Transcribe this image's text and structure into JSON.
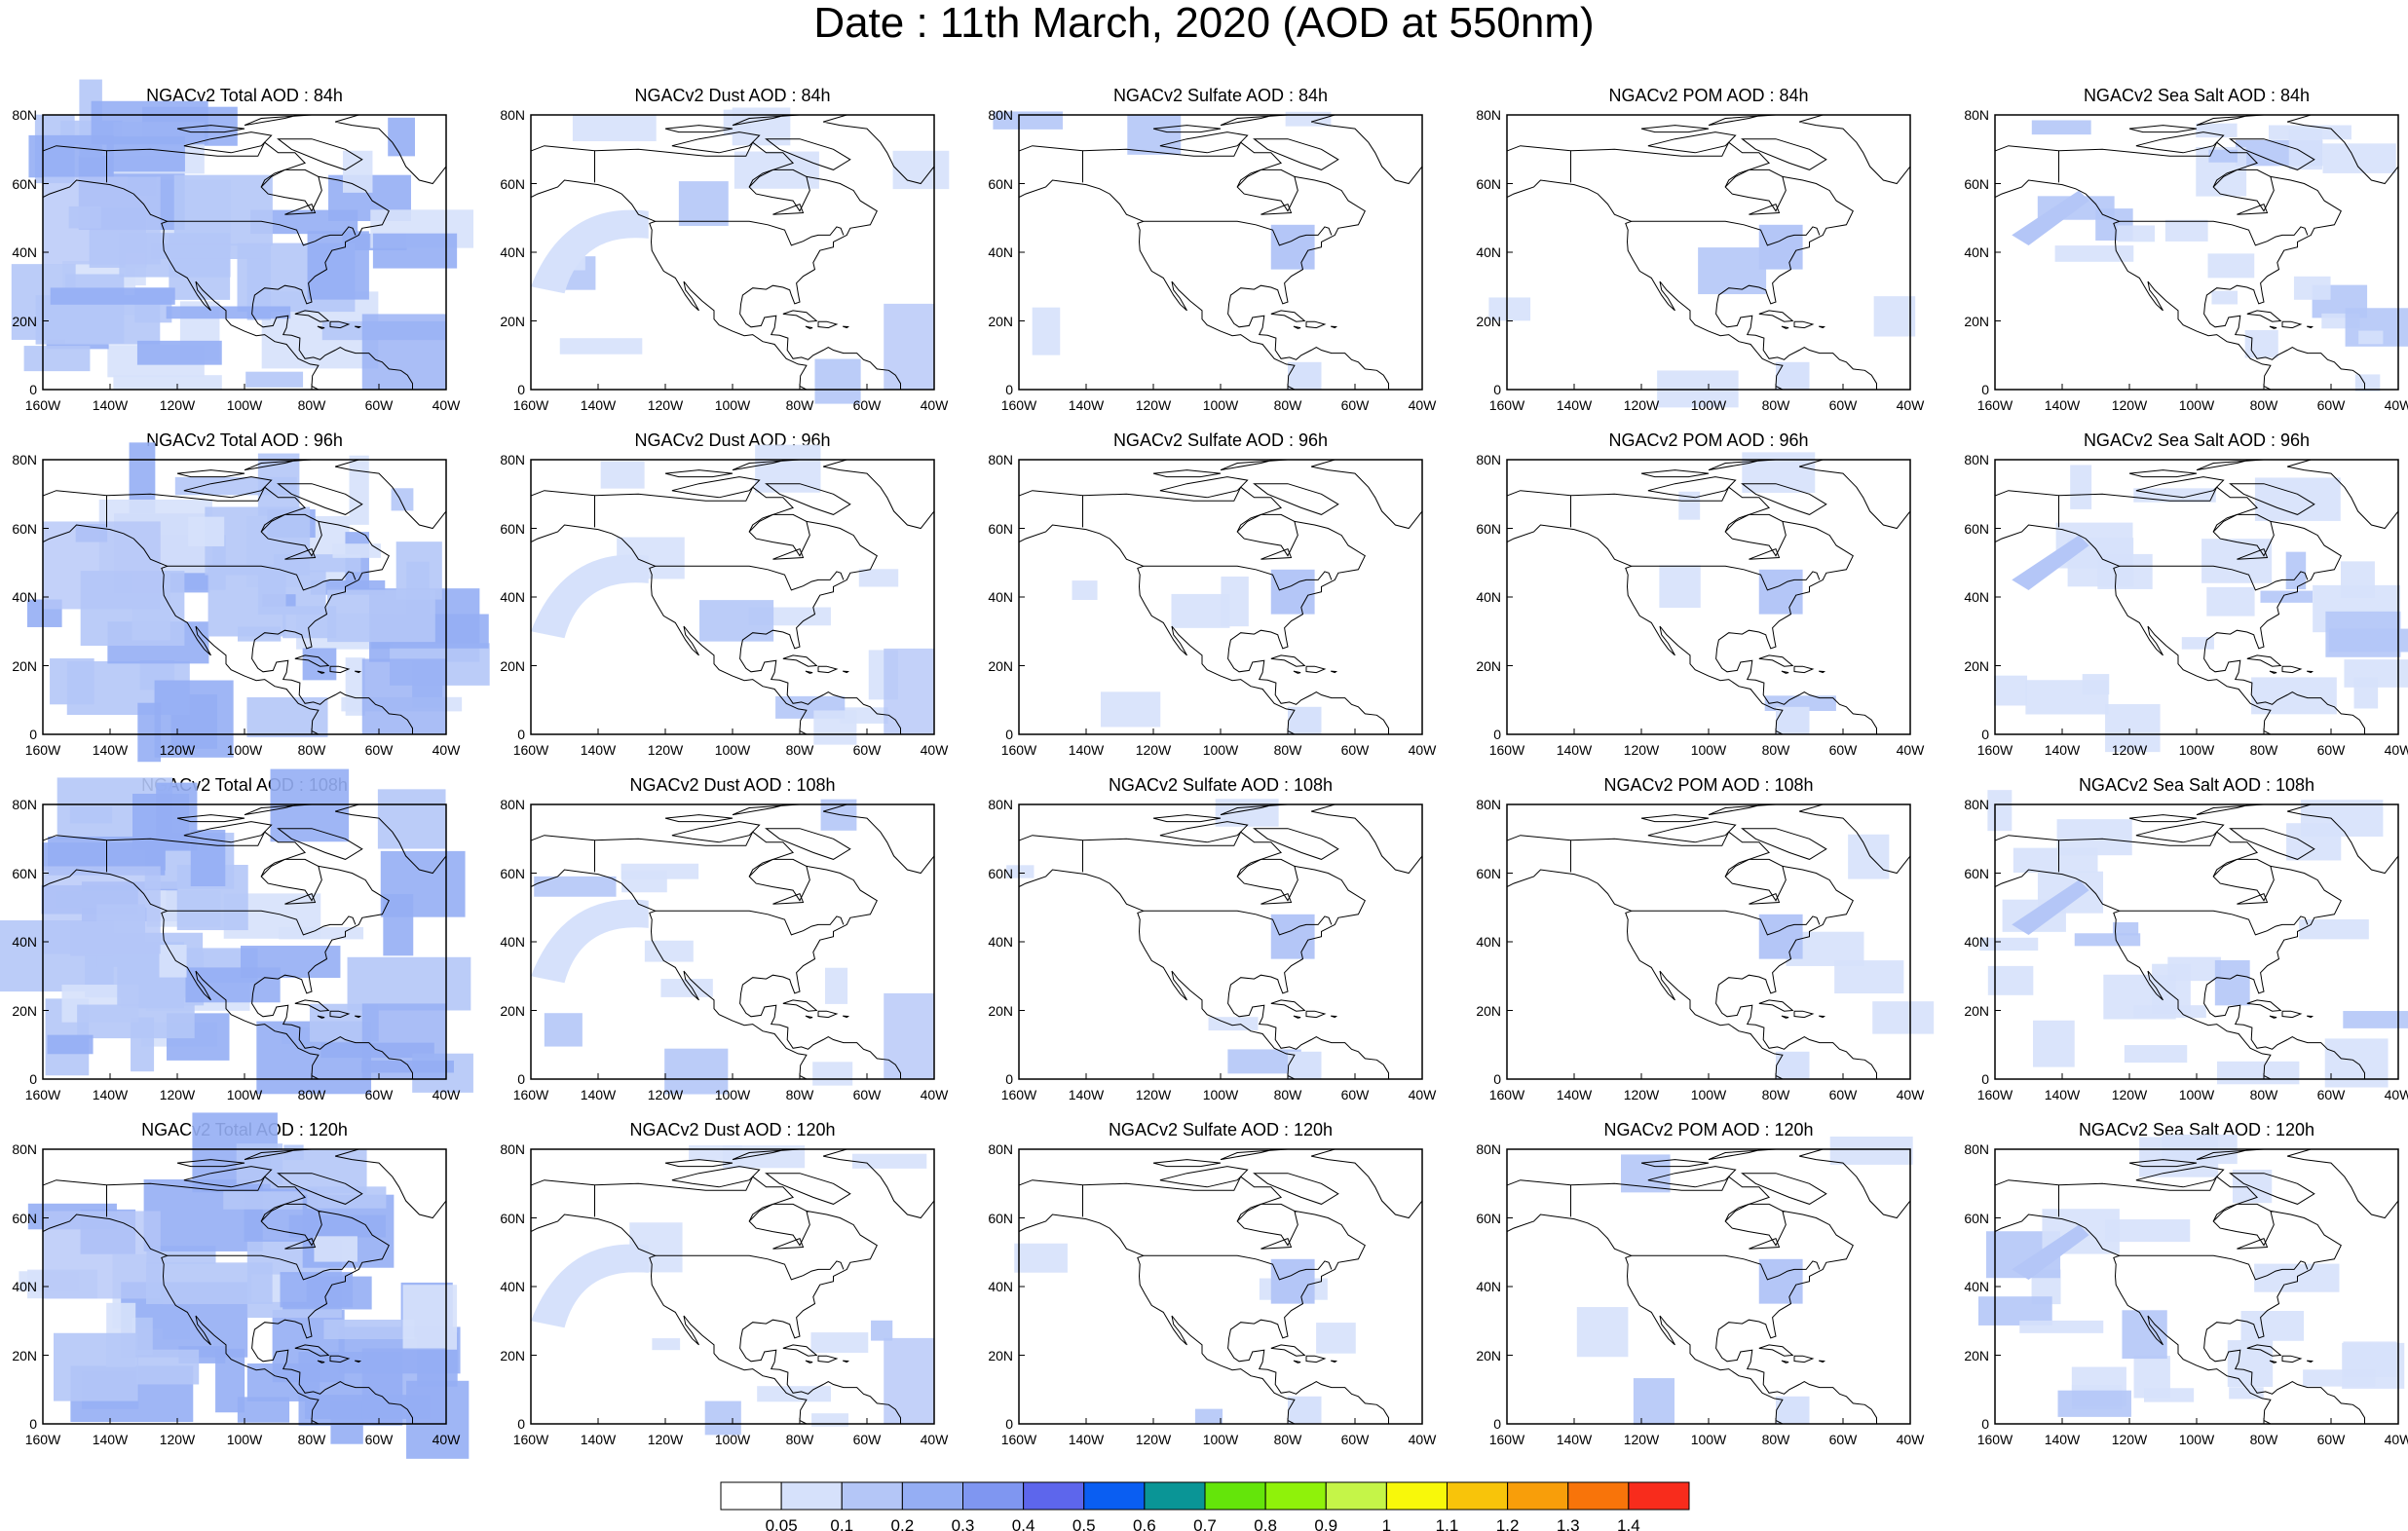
{
  "page_title": "Date : 11th March, 2020 (AOD at 550nm)",
  "lon_ticks": [
    "160W",
    "140W",
    "120W",
    "100W",
    "80W",
    "60W",
    "40W"
  ],
  "lat_ticks": [
    "0",
    "20N",
    "40N",
    "60N",
    "80N"
  ],
  "columns": [
    {
      "label": "NGACv2 Total AOD",
      "key": "total"
    },
    {
      "label": "NGACv2 Dust AOD",
      "key": "dust"
    },
    {
      "label": "NGACv2 Sulfate AOD",
      "key": "sulfate"
    },
    {
      "label": "NGACv2 POM AOD",
      "key": "pom"
    },
    {
      "label": "NGACv2 Sea Salt AOD",
      "key": "seasalt"
    }
  ],
  "panels": [
    {
      "row": 0,
      "col": 0,
      "title": "NGACv2 Total AOD : 84h"
    },
    {
      "row": 0,
      "col": 1,
      "title": "NGACv2 Dust AOD : 84h"
    },
    {
      "row": 0,
      "col": 2,
      "title": "NGACv2 Sulfate AOD : 84h"
    },
    {
      "row": 0,
      "col": 3,
      "title": "NGACv2 POM AOD : 84h"
    },
    {
      "row": 0,
      "col": 4,
      "title": "NGACv2 Sea Salt AOD : 84h"
    },
    {
      "row": 1,
      "col": 0,
      "title": "NGACv2 Total AOD : 96h"
    },
    {
      "row": 1,
      "col": 1,
      "title": "NGACv2 Dust AOD : 96h"
    },
    {
      "row": 1,
      "col": 2,
      "title": "NGACv2 Sulfate AOD : 96h"
    },
    {
      "row": 1,
      "col": 3,
      "title": "NGACv2 POM AOD : 96h"
    },
    {
      "row": 1,
      "col": 4,
      "title": "NGACv2 Sea Salt AOD : 96h"
    },
    {
      "row": 2,
      "col": 0,
      "title": "NGACv2 Total AOD : 108h"
    },
    {
      "row": 2,
      "col": 1,
      "title": "NGACv2 Dust AOD : 108h"
    },
    {
      "row": 2,
      "col": 2,
      "title": "NGACv2 Sulfate AOD : 108h"
    },
    {
      "row": 2,
      "col": 3,
      "title": "NGACv2 POM AOD : 108h"
    },
    {
      "row": 2,
      "col": 4,
      "title": "NGACv2 Sea Salt AOD : 108h"
    },
    {
      "row": 3,
      "col": 0,
      "title": "NGACv2 Total AOD : 120h"
    },
    {
      "row": 3,
      "col": 1,
      "title": "NGACv2 Dust AOD : 120h"
    },
    {
      "row": 3,
      "col": 2,
      "title": "NGACv2 Sulfate AOD : 120h"
    },
    {
      "row": 3,
      "col": 3,
      "title": "NGACv2 POM AOD : 120h"
    },
    {
      "row": 3,
      "col": 4,
      "title": "NGACv2 Sea Salt  AOD : 120h"
    }
  ],
  "colorbar": {
    "labels": [
      "0.05",
      "0.1",
      "0.2",
      "0.3",
      "0.4",
      "0.5",
      "0.6",
      "0.7",
      "0.8",
      "0.9",
      "1",
      "1.1",
      "1.2",
      "1.3",
      "1.4"
    ],
    "colors": [
      "#ffffff",
      "#d6e1fb",
      "#b4c6f7",
      "#95aef4",
      "#7f96f1",
      "#5d66ec",
      "#0a5ef2",
      "#0a9596",
      "#64e50a",
      "#8ff20a",
      "#c5f548",
      "#f8f80a",
      "#f8c40a",
      "#f89e0a",
      "#f8740a",
      "#f82c1c"
    ]
  },
  "map_colors": {
    "level1": "#d6e1fb",
    "level2": "#b4c6f7",
    "level3": "#95aef4",
    "coast": "#000000"
  }
}
